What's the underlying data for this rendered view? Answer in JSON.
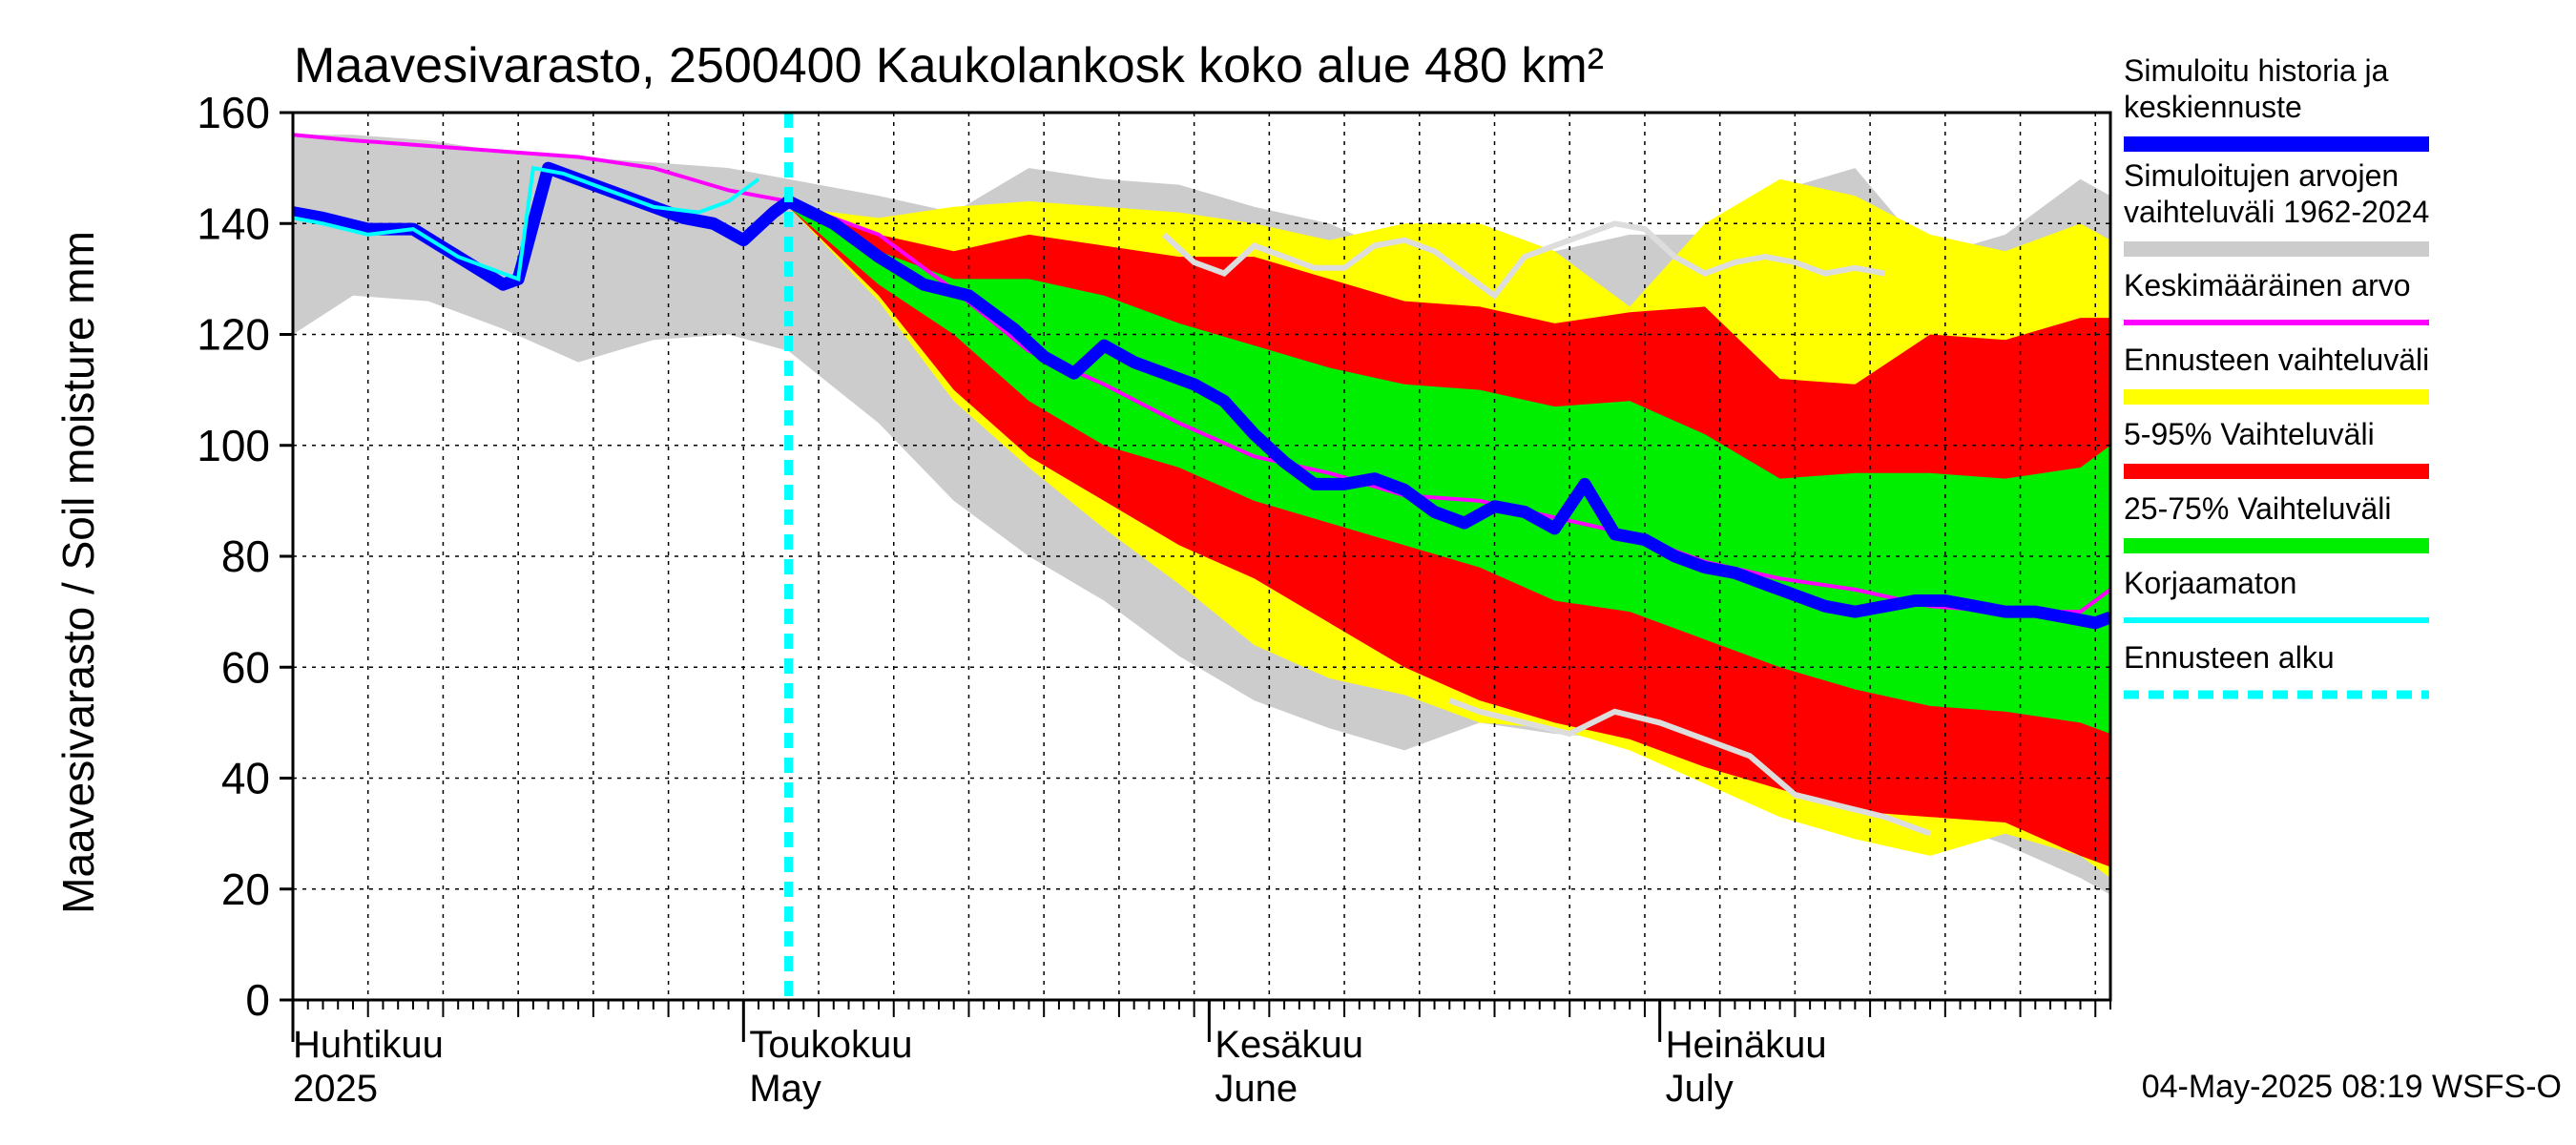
{
  "chart_data": {
    "type": "area",
    "title": "Maavesivarasto, 2500400 Kaukolankosk koko alue 480 km²",
    "ylabel": "Maavesivarasto / Soil moisture   mm",
    "xlabel": "",
    "ylim": [
      0,
      160
    ],
    "yticks": [
      0,
      20,
      40,
      60,
      80,
      100,
      120,
      140,
      160
    ],
    "x_unit": "day of year",
    "xlim": [
      91,
      212
    ],
    "forecast_start_day": 124,
    "month_labels": [
      {
        "fi": "Huhtikuu",
        "en": "2025",
        "day": 91
      },
      {
        "fi": "Toukokuu",
        "en": "May",
        "day": 121
      },
      {
        "fi": "Kesäkuu",
        "en": "June",
        "day": 152
      },
      {
        "fi": "Heinäkuu",
        "en": "July",
        "day": 182
      }
    ],
    "legend": [
      {
        "label": "Simuloitu historia ja keskiennuste",
        "color": "#0000ff",
        "style": "thick"
      },
      {
        "label": "Simuloitujen arvojen vaihteluväli 1962-2024",
        "color": "#cccccc",
        "style": "band"
      },
      {
        "label": "Keskimääräinen arvo",
        "color": "#ff00ff",
        "style": "line"
      },
      {
        "label": "Ennusteen vaihteluväli",
        "color": "#ffff00",
        "style": "band"
      },
      {
        "label": "5-95% Vaihteluväli",
        "color": "#ff0000",
        "style": "band"
      },
      {
        "label": "25-75% Vaihteluväli",
        "color": "#00ee00",
        "style": "band"
      },
      {
        "label": "Korjaamaton",
        "color": "#00ffff",
        "style": "line"
      },
      {
        "label": "Ennusteen alku",
        "color": "#00ffff",
        "style": "dashed"
      }
    ],
    "series": {
      "hist_range": {
        "days": [
          91,
          95,
          100,
          105,
          110,
          115,
          120,
          124,
          130,
          135,
          140,
          145,
          150,
          155,
          160,
          165,
          170,
          175,
          180,
          185,
          190,
          195,
          200,
          205,
          210,
          212
        ],
        "low": [
          120,
          127,
          126,
          121,
          115,
          119,
          120,
          117,
          104,
          90,
          80,
          72,
          62,
          54,
          49,
          45,
          50,
          48,
          47,
          41,
          36,
          35,
          33,
          28,
          22,
          19
        ],
        "high": [
          156,
          156,
          155,
          153,
          152,
          151,
          150,
          148,
          145,
          142,
          150,
          148,
          147,
          143,
          140,
          134,
          132,
          135,
          138,
          138,
          146,
          150,
          134,
          138,
          148,
          145
        ]
      },
      "forecast_range": {
        "days": [
          124,
          130,
          135,
          140,
          145,
          150,
          155,
          160,
          165,
          170,
          175,
          180,
          185,
          190,
          195,
          200,
          205,
          210,
          212
        ],
        "low": [
          143,
          126,
          108,
          96,
          85,
          75,
          64,
          58,
          55,
          50,
          49,
          45,
          39,
          33,
          29,
          26,
          30,
          26,
          22
        ],
        "high": [
          143,
          141,
          143,
          144,
          143,
          142,
          140,
          137,
          140,
          140,
          135,
          125,
          140,
          148,
          145,
          138,
          135,
          140,
          137
        ]
      },
      "p5_95": {
        "days": [
          124,
          130,
          135,
          140,
          145,
          150,
          155,
          160,
          165,
          170,
          175,
          180,
          185,
          190,
          195,
          200,
          205,
          210,
          212
        ],
        "low": [
          143,
          127,
          110,
          98,
          90,
          82,
          76,
          68,
          60,
          54,
          50,
          47,
          42,
          38,
          34,
          33,
          32,
          26,
          24
        ],
        "high": [
          143,
          138,
          135,
          138,
          136,
          134,
          134,
          130,
          126,
          125,
          122,
          124,
          125,
          112,
          111,
          120,
          119,
          123,
          123
        ]
      },
      "p25_75": {
        "days": [
          124,
          130,
          135,
          140,
          145,
          150,
          155,
          160,
          165,
          170,
          175,
          180,
          185,
          190,
          195,
          200,
          205,
          210,
          212
        ],
        "low": [
          143,
          129,
          120,
          108,
          100,
          96,
          90,
          86,
          82,
          78,
          72,
          70,
          65,
          60,
          56,
          53,
          52,
          50,
          48
        ],
        "high": [
          143,
          135,
          130,
          130,
          127,
          122,
          118,
          114,
          111,
          110,
          107,
          108,
          102,
          94,
          95,
          95,
          94,
          96,
          100
        ]
      },
      "mean": {
        "days": [
          91,
          95,
          100,
          105,
          110,
          115,
          120,
          124,
          130,
          135,
          140,
          145,
          150,
          155,
          160,
          165,
          170,
          175,
          180,
          185,
          190,
          195,
          200,
          205,
          210,
          212
        ],
        "values": [
          156,
          155,
          154,
          153,
          152,
          150,
          146,
          144,
          138,
          128,
          117,
          111,
          104,
          98,
          95,
          91,
          90,
          87,
          84,
          79,
          76,
          74,
          71,
          70,
          70,
          74
        ]
      },
      "simulated": {
        "days": [
          91,
          93,
          96,
          99,
          102,
          105,
          106,
          108,
          111,
          114,
          117,
          119,
          121,
          123,
          124,
          127,
          130,
          133,
          136,
          139,
          141,
          143,
          145,
          147,
          149,
          151,
          153,
          155,
          157,
          159,
          161,
          163,
          165,
          167,
          169,
          171,
          173,
          175,
          177,
          179,
          181,
          183,
          185,
          187,
          189,
          191,
          193,
          195,
          197,
          199,
          201,
          203,
          205,
          207,
          209,
          211,
          212
        ],
        "values": [
          142,
          141,
          139,
          139,
          134,
          129,
          130,
          150,
          147,
          144,
          141,
          140,
          137,
          142,
          144,
          140,
          134,
          129,
          127,
          121,
          116,
          113,
          118,
          115,
          113,
          111,
          108,
          102,
          97,
          93,
          93,
          94,
          92,
          88,
          86,
          89,
          88,
          85,
          93,
          84,
          83,
          80,
          78,
          77,
          75,
          73,
          71,
          70,
          71,
          72,
          72,
          71,
          70,
          70,
          69,
          68,
          69
        ]
      },
      "uncorrected": {
        "days": [
          91,
          93,
          96,
          99,
          102,
          105,
          106,
          107,
          109,
          112,
          115,
          118,
          120,
          122
        ],
        "values": [
          141,
          140,
          138,
          139,
          134,
          131,
          130,
          150,
          149,
          146,
          143,
          142,
          144,
          148
        ]
      },
      "history_line": {
        "days": [
          149,
          151,
          153,
          155,
          157,
          159,
          161,
          163,
          165,
          167,
          169,
          171,
          173,
          175,
          177,
          179,
          181,
          183,
          185,
          187,
          189,
          191,
          193,
          195,
          197
        ],
        "values": [
          138,
          133,
          131,
          136,
          134,
          132,
          132,
          136,
          137,
          135,
          131,
          127,
          134,
          136,
          138,
          140,
          139,
          134,
          131,
          133,
          134,
          133,
          131,
          132,
          131
        ]
      },
      "history_line_low": {
        "days": [
          168,
          170,
          173,
          176,
          179,
          182,
          185,
          188,
          191,
          194,
          197,
          200
        ],
        "values": [
          54,
          52,
          50,
          48,
          52,
          50,
          47,
          44,
          37,
          35,
          33,
          30
        ]
      }
    }
  },
  "footer": {
    "timestamp": "04-May-2025 08:19 WSFS-O"
  }
}
